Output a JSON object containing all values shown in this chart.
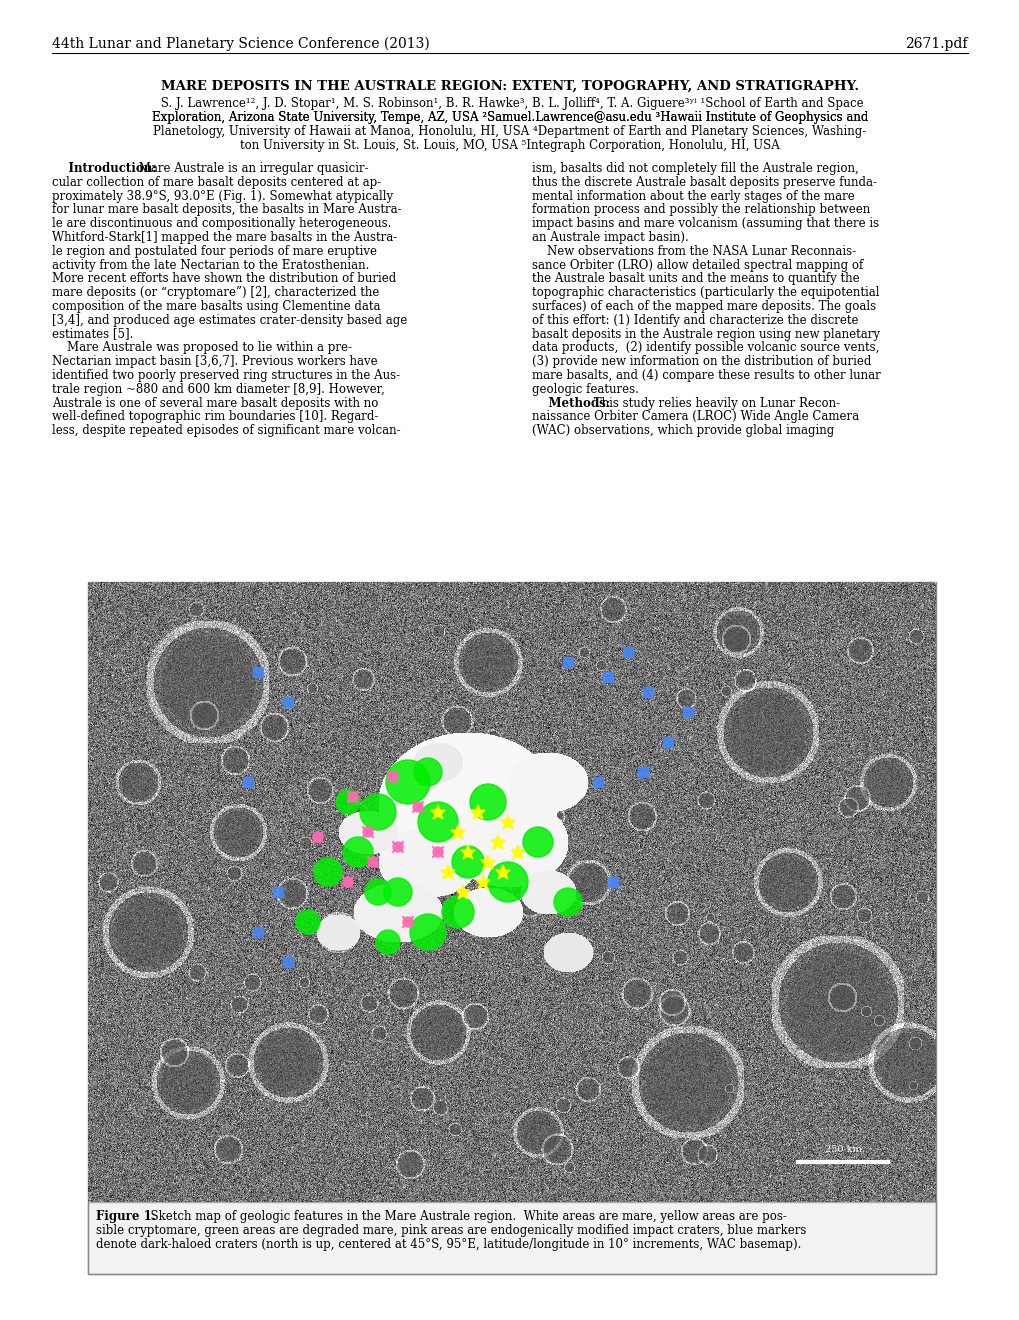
{
  "header_left": "44th Lunar and Planetary Science Conference (2013)",
  "header_right": "2671.pdf",
  "title": "MARE DEPOSITS IN THE AUSTRALE REGION: EXTENT, TOPOGRAPHY, AND STRATIGRAPHY.",
  "bg_color": "#ffffff",
  "text_color": "#000000",
  "header_fontsize": 10,
  "title_fontsize": 9.5,
  "body_fontsize": 8.5,
  "caption_fontsize": 8.5,
  "email_color": "#0000cc",
  "col1_lines": [
    "    Introduction: Mare Australe is an irregular quasicir-",
    "cular collection of mare basalt deposits centered at ap-",
    "proximately 38.9°S, 93.0°E (Fig. 1). Somewhat atypically",
    "for lunar mare basalt deposits, the basalts in Mare Austra-",
    "le are discontinuous and compositionally heterogeneous.",
    "Whitford-Stark[1] mapped the mare basalts in the Austra-",
    "le region and postulated four periods of mare eruptive",
    "activity from the late Nectarian to the Eratosthenian.",
    "More recent efforts have shown the distribution of buried",
    "mare deposits (or “cryptomare”) [2], characterized the",
    "composition of the mare basalts using Clementine data",
    "[3,4], and produced age estimates crater-density based age",
    "estimates [5].",
    "    Mare Australe was proposed to lie within a pre-",
    "Nectarian impact basin [3,6,7]. Previous workers have",
    "identified two poorly preserved ring structures in the Aus-",
    "trale region ~880 and 600 km diameter [8,9]. However,",
    "Australe is one of several mare basalt deposits with no",
    "well-defined topographic rim boundaries [10]. Regard-",
    "less, despite repeated episodes of significant mare volcan-"
  ],
  "col2_lines": [
    "ism, basalts did not completely fill the Australe region,",
    "thus the discrete Australe basalt deposits preserve funda-",
    "mental information about the early stages of the mare",
    "formation process and possibly the relationship between",
    "impact basins and mare volcanism (assuming that there is",
    "an Australe impact basin).",
    "    New observations from the NASA Lunar Reconnais-",
    "sance Orbiter (LRO) allow detailed spectral mapping of",
    "the Australe basalt units and the means to quantify the",
    "topographic characteristics (particularly the equipotential",
    "surfaces) of each of the mapped mare deposits. The goals",
    "of this effort: (1) Identify and characterize the discrete",
    "basalt deposits in the Australe region using new planetary",
    "data products,  (2) identify possible volcanic source vents,",
    "(3) provide new information on the distribution of buried",
    "mare basalts, and (4) compare these results to other lunar",
    "geologic features.",
    "    Methods: This study relies heavily on Lunar Recon-",
    "naissance Orbiter Camera (LROC) Wide Angle Camera",
    "(WAC) observations, which provide global imaging"
  ],
  "caption_line1": "Figure 1.  Sketch map of geologic features in the Mare Australe region.  White areas are mare, yellow areas are pos-",
  "caption_line2": "sible cryptomare, green areas are degraded mare, pink areas are endogenically modified impact craters, blue markers",
  "caption_line3": "denote dark-haloed craters (north is up, centered at 45°S, 95°E, latitude/longitude in 10° increments, WAC basemap)."
}
